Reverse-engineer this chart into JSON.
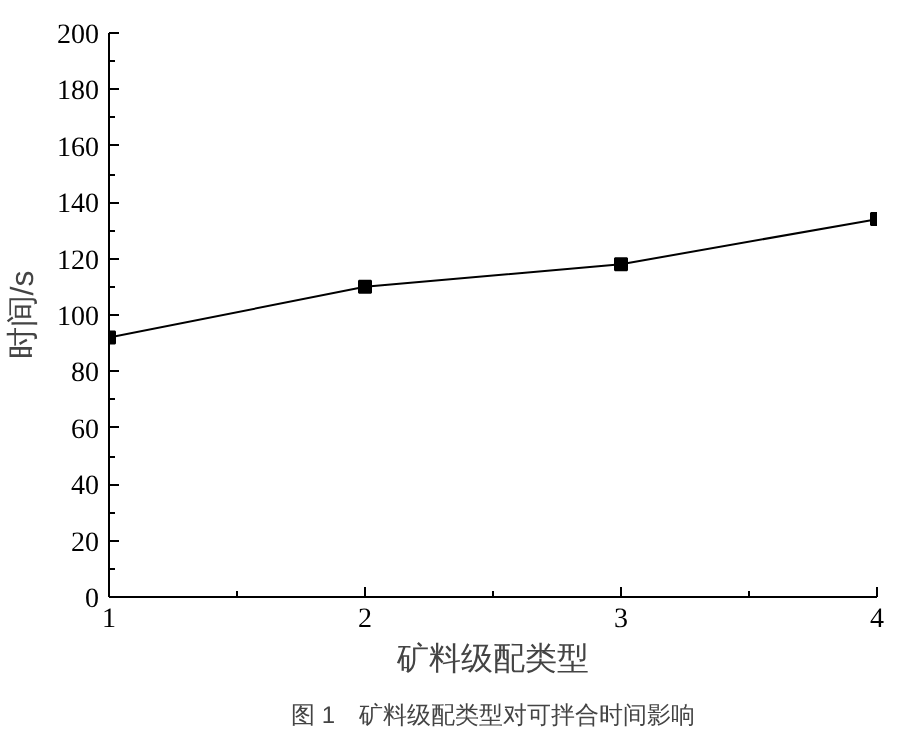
{
  "chart_data": {
    "type": "line",
    "x": [
      1,
      2,
      3,
      4
    ],
    "series": [
      {
        "color": "#000000",
        "values": [
          92,
          110,
          118,
          134
        ]
      }
    ],
    "xlim": [
      1,
      4
    ],
    "xticks": [
      1,
      2,
      3,
      4
    ],
    "ylim": [
      0,
      200
    ],
    "yticks": [
      0,
      20,
      40,
      60,
      80,
      100,
      120,
      140,
      160,
      180,
      200
    ],
    "xlabel": "矿料级配类型",
    "ylabel": "时间/s",
    "marker": "square",
    "line_style": "solid",
    "grid": false,
    "annotations": [
      "图 1　矿料级配类型对可拌合时间影响"
    ]
  }
}
